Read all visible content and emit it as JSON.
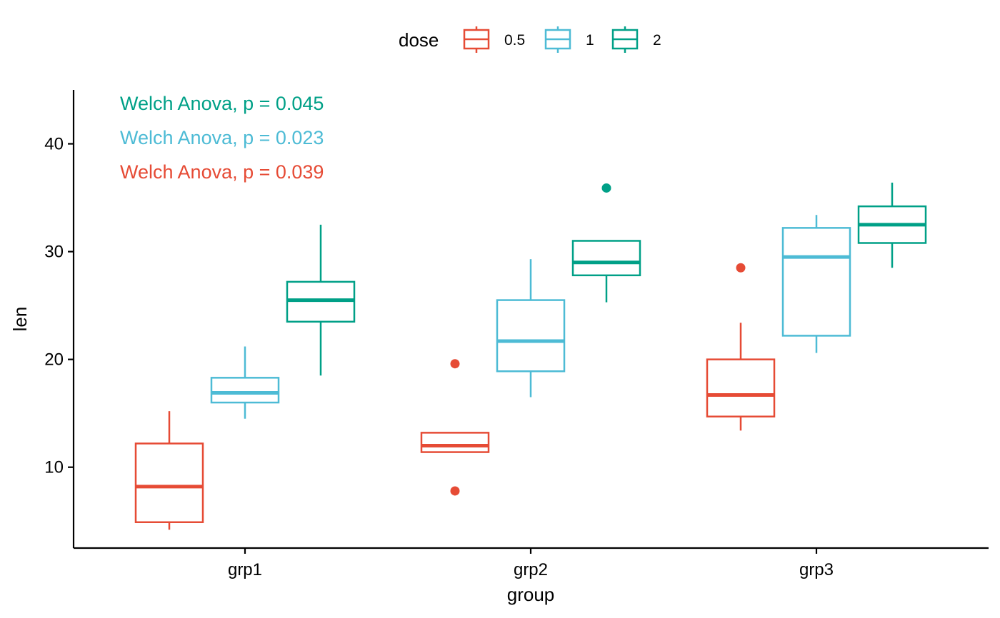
{
  "chart_data": {
    "type": "boxplot",
    "xlabel": "group",
    "ylabel": "len",
    "categories": [
      "grp1",
      "grp2",
      "grp3"
    ],
    "ylim": [
      2.5,
      45
    ],
    "yticks": [
      10,
      20,
      30,
      40
    ],
    "legend": {
      "title": "dose",
      "position": "top"
    },
    "series": [
      {
        "name": "0.5",
        "color": "#E64B35",
        "boxes": [
          {
            "category": "grp1",
            "whisker_low": 4.2,
            "q1": 4.9,
            "median": 8.2,
            "q3": 12.2,
            "whisker_high": 15.2,
            "outliers": []
          },
          {
            "category": "grp2",
            "whisker_low": 11.4,
            "q1": 11.4,
            "median": 12.0,
            "q3": 13.2,
            "whisker_high": 13.2,
            "outliers": [
              19.6,
              7.8
            ]
          },
          {
            "category": "grp3",
            "whisker_low": 13.4,
            "q1": 14.7,
            "median": 16.7,
            "q3": 20.0,
            "whisker_high": 23.4,
            "outliers": [
              28.5
            ]
          }
        ]
      },
      {
        "name": "1",
        "color": "#4DBBD5",
        "boxes": [
          {
            "category": "grp1",
            "whisker_low": 14.5,
            "q1": 16.0,
            "median": 16.9,
            "q3": 18.3,
            "whisker_high": 21.2,
            "outliers": []
          },
          {
            "category": "grp2",
            "whisker_low": 16.5,
            "q1": 18.9,
            "median": 21.7,
            "q3": 25.5,
            "whisker_high": 29.3,
            "outliers": []
          },
          {
            "category": "grp3",
            "whisker_low": 20.6,
            "q1": 22.2,
            "median": 29.5,
            "q3": 32.2,
            "whisker_high": 33.4,
            "outliers": []
          }
        ]
      },
      {
        "name": "2",
        "color": "#00A087",
        "boxes": [
          {
            "category": "grp1",
            "whisker_low": 18.5,
            "q1": 23.5,
            "median": 25.5,
            "q3": 27.2,
            "whisker_high": 32.5,
            "outliers": []
          },
          {
            "category": "grp2",
            "whisker_low": 25.3,
            "q1": 27.8,
            "median": 29.0,
            "q3": 31.0,
            "whisker_high": 31.0,
            "outliers": [
              35.9
            ]
          },
          {
            "category": "grp3",
            "whisker_low": 28.5,
            "q1": 30.8,
            "median": 32.5,
            "q3": 34.2,
            "whisker_high": 36.4,
            "outliers": []
          }
        ]
      }
    ],
    "annotations": [
      {
        "text": "Welch Anova, p = 0.045",
        "color": "#00A087"
      },
      {
        "text": "Welch Anova, p = 0.023",
        "color": "#4DBBD5"
      },
      {
        "text": "Welch Anova, p = 0.039",
        "color": "#E64B35"
      }
    ]
  }
}
